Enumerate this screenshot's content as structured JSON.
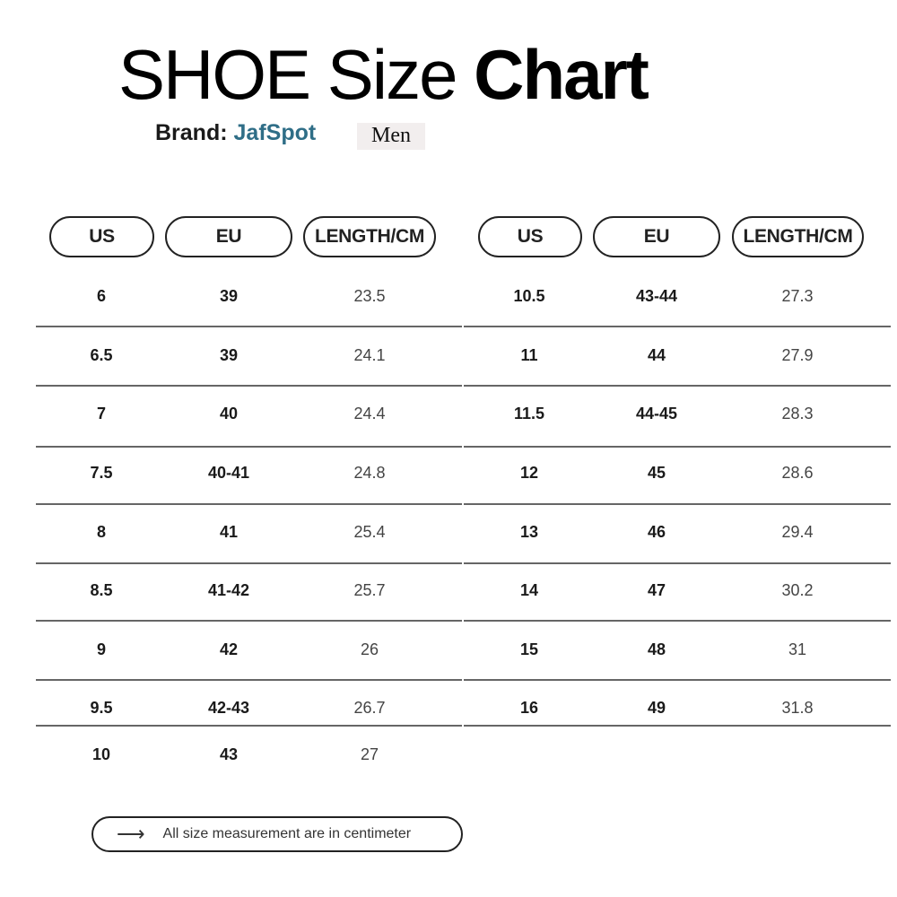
{
  "title": {
    "light": "SHOE Size",
    "bold": "Chart"
  },
  "brand": {
    "label": "Brand:",
    "name": "JafSpot",
    "gender": "Men"
  },
  "colors": {
    "brand": "#2f6e87",
    "gender_bg": "#f2eeee"
  },
  "headers": [
    "US",
    "EU",
    "LENGTH/CM"
  ],
  "left_rows": [
    [
      "6",
      "39",
      "23.5"
    ],
    [
      "6.5",
      "39",
      "24.1"
    ],
    [
      "7",
      "40",
      "24.4"
    ],
    [
      "7.5",
      "40-41",
      "24.8"
    ],
    [
      "8",
      "41",
      "25.4"
    ],
    [
      "8.5",
      "41-42",
      "25.7"
    ],
    [
      "9",
      "42",
      "26"
    ],
    [
      "9.5",
      "42-43",
      "26.7"
    ],
    [
      "10",
      "43",
      "27"
    ]
  ],
  "right_rows": [
    [
      "10.5",
      "43-44",
      "27.3"
    ],
    [
      "11",
      "44",
      "27.9"
    ],
    [
      "11.5",
      "44-45",
      "28.3"
    ],
    [
      "12",
      "45",
      "28.6"
    ],
    [
      "13",
      "46",
      "29.4"
    ],
    [
      "14",
      "47",
      "30.2"
    ],
    [
      "15",
      "48",
      "31"
    ],
    [
      "16",
      "49",
      "31.8"
    ]
  ],
  "note": {
    "icon": "arrow-right-icon",
    "text": "All size measurement are in centimeter"
  }
}
